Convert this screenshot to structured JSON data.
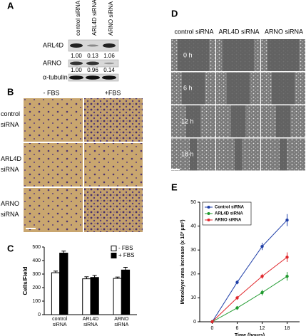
{
  "panel_labels": [
    "A",
    "B",
    "C",
    "D",
    "E"
  ],
  "blot": {
    "columns": [
      "control siRNA",
      "ARL4D siRNA",
      "ARNO siRNA"
    ],
    "rows": [
      {
        "name": "ARL4D",
        "ratios": [
          "1.00",
          "0.13",
          "1.06"
        ]
      },
      {
        "name": "ARNO",
        "ratios": [
          "1.00",
          "0.96",
          "0.14"
        ]
      },
      {
        "name": "α-tubulin"
      }
    ]
  },
  "invasion_images": {
    "columns": [
      "- FBS",
      "+FBS"
    ],
    "rows": [
      "control siRNA",
      "ARL4D siRNA",
      "ARNO siRNA"
    ]
  },
  "wound_images": {
    "columns": [
      "control siRNA",
      "ARL4D siRNA",
      "ARNO siRNA"
    ],
    "rows": [
      "0 h",
      "6 h",
      "12 h",
      "18 h"
    ]
  },
  "chart_data": [
    {
      "type": "bar",
      "ylabel": "Cells/Field",
      "categories": [
        "control siRNA",
        "ARL4D siRNA",
        "ARNO siRNA"
      ],
      "series": [
        {
          "name": "- FBS",
          "color": "#ffffff",
          "values": [
            310,
            265,
            268
          ],
          "errors": [
            12,
            15,
            10
          ]
        },
        {
          "name": "+ FBS",
          "color": "#000000",
          "values": [
            455,
            275,
            330
          ],
          "errors": [
            15,
            15,
            20
          ]
        }
      ],
      "ylim": [
        0,
        500
      ],
      "yticks": [
        0,
        100,
        200,
        300,
        400,
        500
      ],
      "legend": "upper right"
    },
    {
      "type": "line",
      "xlabel": "Time (hours)",
      "ylabel": "Monolayer area increase (x 10³ μm²)",
      "x": [
        0,
        6,
        12,
        18
      ],
      "series": [
        {
          "name": "Control siRNA",
          "color": "#1f3fa8",
          "values": [
            0,
            16.5,
            31.5,
            42.5
          ],
          "errors": [
            0,
            0.8,
            1.5,
            2.5
          ]
        },
        {
          "name": "ARL4D siRNA",
          "color": "#1f9a2e",
          "values": [
            0,
            5.8,
            12.2,
            19
          ],
          "errors": [
            0,
            0.8,
            1.2,
            1.8
          ]
        },
        {
          "name": "ARNO siRNA",
          "color": "#e0262b",
          "values": [
            0,
            10,
            19,
            27
          ],
          "errors": [
            0,
            0.8,
            1,
            2
          ]
        }
      ],
      "xlim": [
        -3,
        21
      ],
      "xticks": [
        0,
        6,
        12,
        18
      ],
      "ylim": [
        0,
        50
      ],
      "yticks": [
        0,
        10,
        20,
        30,
        40,
        50
      ],
      "legend": "upper left"
    }
  ]
}
